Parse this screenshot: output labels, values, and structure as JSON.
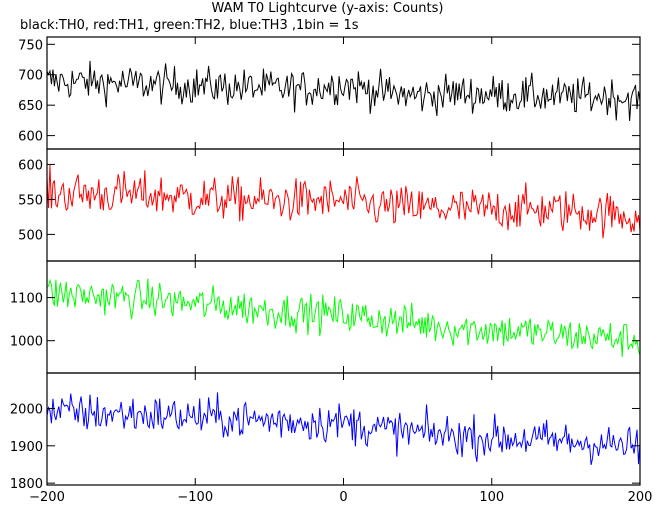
{
  "title": "WAM T0 Lightcurve (y-axis: Counts)",
  "subtitle": "black:TH0, red:TH1, green:TH2, blue:TH3 ,1bin = 1s",
  "chart_data": {
    "type": "line",
    "title": "WAM T0 Lightcurve (y-axis: Counts)",
    "subtitle": "black:TH0, red:TH1, green:TH2, blue:TH3 ,1bin = 1s",
    "xlabel": "",
    "ylabel": "",
    "xlim": [
      -200,
      200
    ],
    "x_ticks": [
      -200,
      -100,
      0,
      100,
      200
    ],
    "bin_width": 1,
    "panels": [
      {
        "name": "TH0",
        "color": "#000000",
        "ylim": [
          578,
          762
        ],
        "y_ticks": [
          600,
          650,
          700,
          750
        ],
        "x": [
          -200,
          -175,
          -150,
          -125,
          -100,
          -75,
          -50,
          -25,
          0,
          25,
          50,
          75,
          100,
          125,
          150,
          175,
          200
        ],
        "values": [
          690,
          688,
          686,
          684,
          682,
          680,
          678,
          676,
          685,
          672,
          665,
          670,
          668,
          666,
          664,
          665,
          660
        ],
        "spread": 22
      },
      {
        "name": "TH1",
        "color": "#ff0000",
        "ylim": [
          462,
          622
        ],
        "y_ticks": [
          500,
          550,
          600
        ],
        "x": [
          -200,
          -175,
          -150,
          -125,
          -100,
          -75,
          -50,
          -25,
          0,
          25,
          50,
          75,
          100,
          125,
          150,
          175,
          200
        ],
        "values": [
          560,
          558,
          558,
          556,
          552,
          550,
          548,
          548,
          548,
          540,
          538,
          536,
          536,
          536,
          534,
          530,
          525
        ],
        "spread": 22
      },
      {
        "name": "TH2",
        "color": "#00ff00",
        "ylim": [
          925,
          1185
        ],
        "y_ticks": [
          1000,
          1100
        ],
        "x": [
          -200,
          -175,
          -150,
          -125,
          -100,
          -75,
          -50,
          -25,
          0,
          25,
          50,
          75,
          100,
          125,
          150,
          175,
          200
        ],
        "values": [
          1110,
          1105,
          1100,
          1095,
          1085,
          1080,
          1070,
          1065,
          1060,
          1050,
          1040,
          1030,
          1025,
          1020,
          1012,
          1008,
          1000
        ],
        "spread": 30
      },
      {
        "name": "TH3",
        "color": "#0000ff",
        "ylim": [
          1795,
          2095
        ],
        "y_ticks": [
          1800,
          1900,
          2000
        ],
        "x": [
          -200,
          -175,
          -150,
          -125,
          -100,
          -75,
          -50,
          -25,
          0,
          25,
          50,
          75,
          100,
          125,
          150,
          175,
          200
        ],
        "values": [
          1990,
          1988,
          1985,
          1982,
          1978,
          1972,
          1968,
          1965,
          1962,
          1945,
          1935,
          1928,
          1922,
          1918,
          1912,
          1905,
          1895
        ],
        "spread": 38
      }
    ]
  }
}
